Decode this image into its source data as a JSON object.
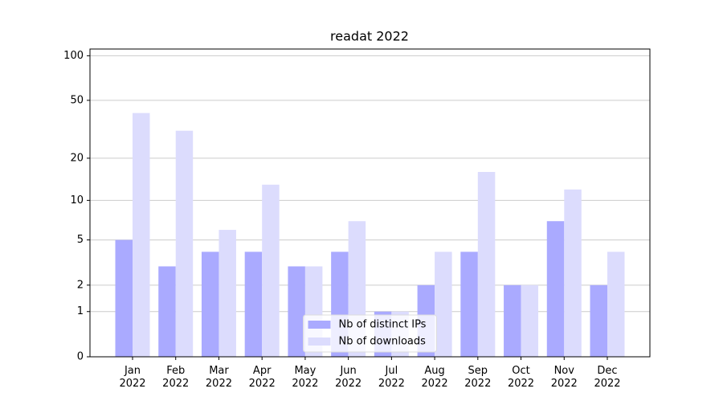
{
  "chart_data": {
    "type": "bar",
    "title": "readat 2022",
    "categories": [
      "Jan\n2022",
      "Feb\n2022",
      "Mar\n2022",
      "Apr\n2022",
      "May\n2022",
      "Jun\n2022",
      "Jul\n2022",
      "Aug\n2022",
      "Sep\n2022",
      "Oct\n2022",
      "Nov\n2022",
      "Dec\n2022"
    ],
    "series": [
      {
        "name": "Nb of distinct IPs",
        "color": "#aaaaff",
        "values": [
          5,
          3,
          4,
          4,
          3,
          4,
          1,
          2,
          4,
          2,
          7,
          2
        ]
      },
      {
        "name": "Nb of downloads",
        "color": "#dcdcfd",
        "values": [
          41,
          31,
          6,
          13,
          3,
          7,
          1,
          4,
          16,
          2,
          12,
          4
        ]
      }
    ],
    "yscale": "log1p",
    "ylim": [
      0,
      111
    ],
    "yticks": [
      0,
      1,
      2,
      5,
      10,
      20,
      50,
      100
    ],
    "grid": true,
    "legend": "lower center"
  }
}
